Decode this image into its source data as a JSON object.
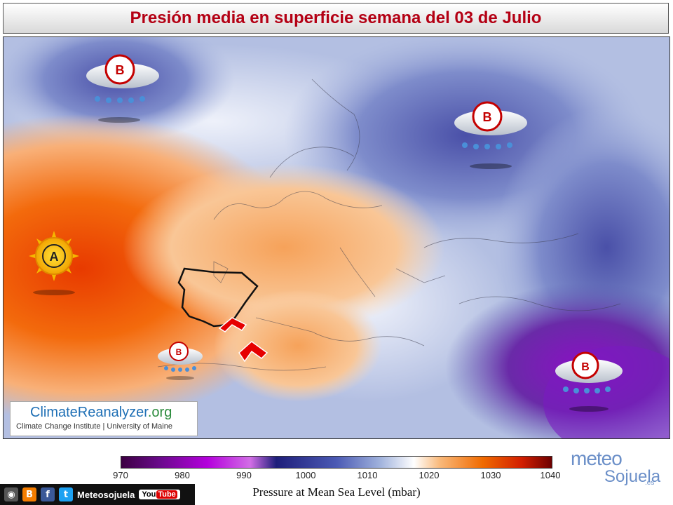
{
  "title": "Presión media en superficie semana del 03 de Julio",
  "map": {
    "low_marker_letter": "B",
    "high_marker_letter": "A",
    "pressure_centers": [
      {
        "type": "low",
        "letter": "B",
        "location": "North Atlantic / Greenland"
      },
      {
        "type": "low",
        "letter": "B",
        "location": "Northwest Russia"
      },
      {
        "type": "low",
        "letter": "B",
        "location": "North Africa / Morocco"
      },
      {
        "type": "low",
        "letter": "B",
        "location": "Middle East"
      },
      {
        "type": "high",
        "letter": "A",
        "location": "Azores"
      }
    ],
    "arrows": 2
  },
  "colorbar": {
    "ticks": [
      "970",
      "980",
      "990",
      "1000",
      "1010",
      "1020",
      "1030",
      "1040"
    ],
    "label": "Pressure at Mean Sea Level (mbar)",
    "colors": [
      "#3c0042",
      "#6a0a8c",
      "#b400dc",
      "#d26ee6",
      "#1e1e7a",
      "#4b5ab4",
      "#9fb1dc",
      "#ffffff",
      "#f9b97a",
      "#f06a00",
      "#d21e00",
      "#6e0000"
    ]
  },
  "logo": {
    "main": "ClimateReanalyzer",
    "tld": ".org",
    "sub": "Climate Change Institute | University of Maine"
  },
  "social": {
    "name": "Meteosojuela",
    "youtube_left": "You",
    "youtube_right": "Tube"
  },
  "brand": {
    "top": "meteo",
    "bottom": "Sojuela",
    "suffix": ".es"
  }
}
